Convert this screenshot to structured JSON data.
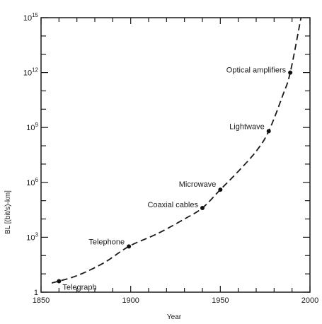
{
  "chart_data": {
    "type": "scatter",
    "xlabel": "Year",
    "ylabel": "BL [(bit/s)-km]",
    "xlim": [
      1850,
      2000
    ],
    "ylim_log10": [
      0,
      15
    ],
    "y_scale": "log",
    "grid": false,
    "x_ticks": [
      {
        "value": 1850,
        "label": "1850"
      },
      {
        "value": 1900,
        "label": "1900"
      },
      {
        "value": 1950,
        "label": "1950"
      },
      {
        "value": 2000,
        "label": "2000"
      }
    ],
    "y_ticks": [
      {
        "exp": 0,
        "base": "1",
        "sup": ""
      },
      {
        "exp": 3,
        "base": "10",
        "sup": "3"
      },
      {
        "exp": 6,
        "base": "10",
        "sup": "6"
      },
      {
        "exp": 9,
        "base": "10",
        "sup": "9"
      },
      {
        "exp": 12,
        "base": "10",
        "sup": "12"
      },
      {
        "exp": 15,
        "base": "10",
        "sup": "15"
      }
    ],
    "points": [
      {
        "label": "Telegraph",
        "year": 1860,
        "log10_bl": 0.6
      },
      {
        "label": "Telephone",
        "year": 1899,
        "log10_bl": 2.5
      },
      {
        "label": "Coaxial cables",
        "year": 1940,
        "log10_bl": 4.6
      },
      {
        "label": "Microwave",
        "year": 1950,
        "log10_bl": 5.6
      },
      {
        "label": "Lightwave",
        "year": 1977,
        "log10_bl": 8.8
      },
      {
        "label": "Optical amplifiers",
        "year": 1989,
        "log10_bl": 12.0
      }
    ],
    "trend_line": {
      "style": "dashed",
      "x": [
        1856,
        1870,
        1885,
        1899,
        1915,
        1930,
        1940,
        1950,
        1960,
        1970,
        1977,
        1985,
        1989,
        1995
      ],
      "log10_bl": [
        0.5,
        0.9,
        1.6,
        2.5,
        3.2,
        4.0,
        4.6,
        5.6,
        6.6,
        7.7,
        8.8,
        10.8,
        12.0,
        15.0
      ]
    }
  }
}
